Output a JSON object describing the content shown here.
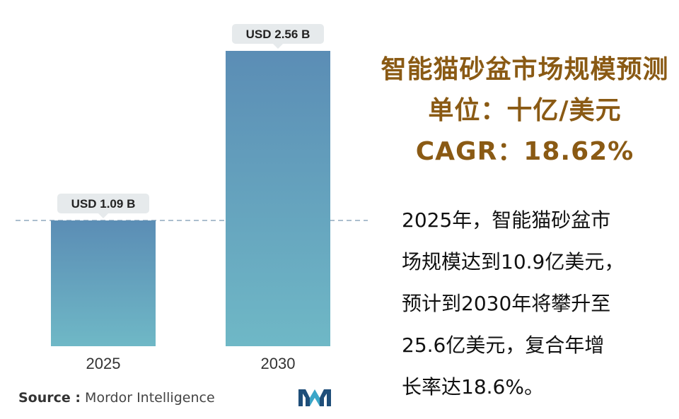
{
  "chart_data": {
    "type": "bar",
    "categories": [
      "2025",
      "2030"
    ],
    "values": [
      1.09,
      2.56
    ],
    "value_labels": [
      "USD 1.09 B",
      "USD 2.56 B"
    ],
    "reference_line": 1.09,
    "ylim": [
      0,
      2.56
    ],
    "grid": false,
    "colors": {
      "bar_top": "#5b8db5",
      "bar_bottom": "#6fb8c6",
      "label_bg": "#e6eaec",
      "dashed_line": "#8fa9bd"
    }
  },
  "source": {
    "label": "Source :",
    "name": "Mordor Intelligence"
  },
  "logo": {
    "icon": "mordor-intelligence-logo",
    "colors": [
      "#1f4e79",
      "#3aa6c8"
    ]
  },
  "panel": {
    "title_lines": [
      "智能猫砂盆市场规模预测",
      "单位：十亿/美元",
      "CAGR：18.62%"
    ],
    "title_color": "#8a5a14",
    "description_lines": [
      "2025年，智能猫砂盆市",
      "场规模达到10.9亿美元，",
      "预计到2030年将攀升至",
      "25.6亿美元，复合年增",
      "长率达18.6%。"
    ]
  }
}
